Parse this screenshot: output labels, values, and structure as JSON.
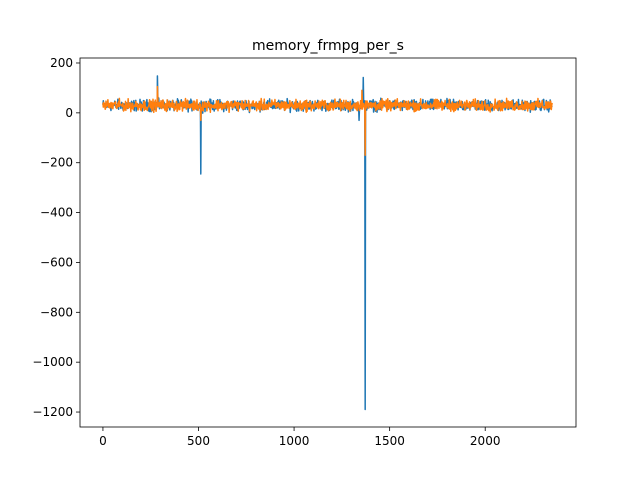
{
  "chart_data": {
    "type": "line",
    "title": "memory_frmpg_per_s",
    "xlabel": "",
    "ylabel": "",
    "xlim": [
      -120,
      2475
    ],
    "ylim": [
      -1260,
      220
    ],
    "xticks": [
      0,
      500,
      1000,
      1500,
      2000
    ],
    "yticks": [
      200,
      0,
      -200,
      -400,
      -600,
      -800,
      -1000,
      -1200
    ],
    "x_tick_labels": [
      "0",
      "500",
      "1000",
      "1500",
      "2000"
    ],
    "y_tick_labels": [
      "200",
      "0",
      "−200",
      "−400",
      "−600",
      "−800",
      "−1000",
      "−1200"
    ],
    "grid": false,
    "legend": "none",
    "x_range": [
      0,
      2350
    ],
    "series": [
      {
        "color": "#1f77b4",
        "baseline_level": 30,
        "noise_amplitude": 22,
        "spikes": [
          {
            "x": 285,
            "y": 148
          },
          {
            "x": 512,
            "y": -245
          },
          {
            "x": 1340,
            "y": -30
          },
          {
            "x": 1362,
            "y": 142
          },
          {
            "x": 1372,
            "y": -1190
          }
        ]
      },
      {
        "color": "#ff7f0e",
        "baseline_level": 30,
        "noise_amplitude": 22,
        "spikes": [
          {
            "x": 285,
            "y": 105
          },
          {
            "x": 512,
            "y": -30
          },
          {
            "x": 1355,
            "y": 90
          },
          {
            "x": 1372,
            "y": -170
          }
        ]
      }
    ]
  }
}
